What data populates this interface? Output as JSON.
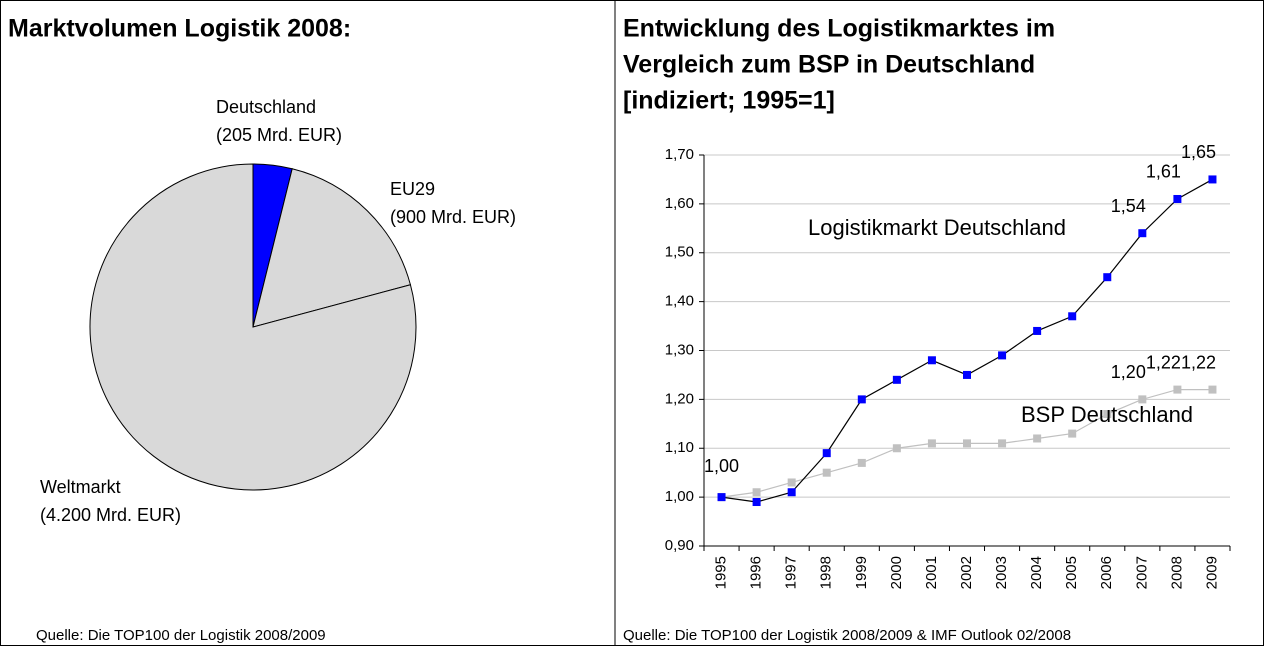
{
  "chart_data": [
    {
      "type": "pie",
      "title": "Marktvolumen Logistik 2008:",
      "categories": [
        "Deutschland",
        "EU29",
        "Weltmarkt"
      ],
      "values": [
        205,
        900,
        4200
      ],
      "value_labels": [
        "(205 Mrd. EUR)",
        "(900 Mrd. EUR)",
        "(4.200 Mrd. EUR)"
      ],
      "colors": [
        "#0000ff",
        "#d9d9d9",
        "#d9d9d9"
      ],
      "source": "Quelle: Die TOP100 der Logistik 2008/2009"
    },
    {
      "type": "line",
      "title": [
        "Entwicklung des Logistikmarktes im",
        "Vergleich zum BSP in Deutschland",
        "[indiziert; 1995=1]"
      ],
      "categories": [
        "1995",
        "1996",
        "1997",
        "1998",
        "1999",
        "2000",
        "2001",
        "2002",
        "2003",
        "2004",
        "2005",
        "2006",
        "2007",
        "2008",
        "2009"
      ],
      "series": [
        {
          "name": "Logistikmarkt Deutschland",
          "color": "#0000ff",
          "line_color": "#000000",
          "values": [
            1.0,
            0.99,
            1.01,
            1.09,
            1.2,
            1.24,
            1.28,
            1.25,
            1.29,
            1.34,
            1.37,
            1.45,
            1.54,
            1.61,
            1.65
          ],
          "value_labels": [
            "1,00",
            null,
            null,
            null,
            null,
            null,
            null,
            null,
            null,
            null,
            null,
            null,
            "1,54",
            "1,61",
            "1,65"
          ]
        },
        {
          "name": "BSP Deutschland",
          "color": "#c0c0c0",
          "line_color": "#c0c0c0",
          "values": [
            1.0,
            1.01,
            1.03,
            1.05,
            1.07,
            1.1,
            1.11,
            1.11,
            1.11,
            1.12,
            1.13,
            1.17,
            1.2,
            1.22,
            1.22
          ],
          "value_labels": [
            null,
            null,
            null,
            null,
            null,
            null,
            null,
            null,
            null,
            null,
            null,
            null,
            "1,20",
            "1,22",
            "1,22"
          ]
        }
      ],
      "ylim": [
        0.9,
        1.7
      ],
      "yticks": [
        {
          "value": 0.9,
          "label": "0,90"
        },
        {
          "value": 1.0,
          "label": "1,00"
        },
        {
          "value": 1.1,
          "label": "1,10"
        },
        {
          "value": 1.2,
          "label": "1,20"
        },
        {
          "value": 1.3,
          "label": "1,30"
        },
        {
          "value": 1.4,
          "label": "1,40"
        },
        {
          "value": 1.5,
          "label": "1,50"
        },
        {
          "value": 1.6,
          "label": "1,60"
        },
        {
          "value": 1.7,
          "label": "1,70"
        }
      ],
      "grid": true,
      "source": "Quelle: Die TOP100 der Logistik 2008/2009 & IMF Outlook 02/2008"
    }
  ]
}
